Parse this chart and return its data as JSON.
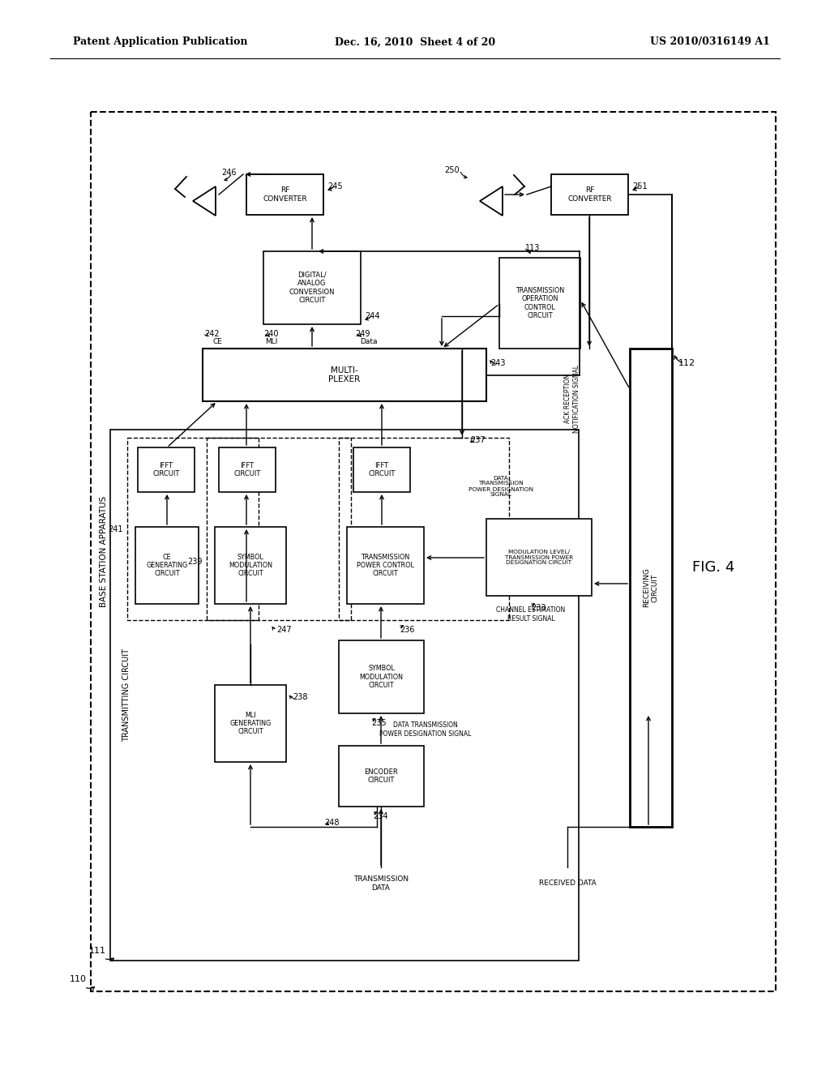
{
  "header_left": "Patent Application Publication",
  "header_mid": "Dec. 16, 2010  Sheet 4 of 20",
  "header_right": "US 2010/0316149 A1",
  "fig_label": "FIG. 4",
  "bg": "#ffffff"
}
